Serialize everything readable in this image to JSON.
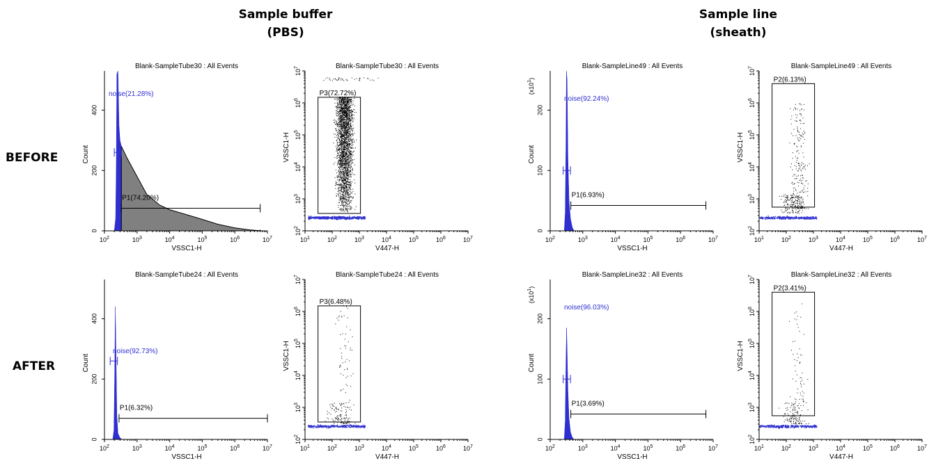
{
  "headers": {
    "left": {
      "line1": "Sample buffer",
      "line2": "(PBS)"
    },
    "right": {
      "line1": "Sample line",
      "line2": "(sheath)"
    }
  },
  "row_labels": {
    "before": "BEFORE",
    "after": "AFTER"
  },
  "colors": {
    "histogram_fill_gray": "#808080",
    "noise_blue": "#2f2fd0",
    "dots": "#000000",
    "gate_line": "#000000"
  },
  "chart_data": [
    {
      "id": "hist-tube30",
      "type": "area",
      "title": "Blank-SampleTube30 : All Events",
      "xlabel": "VSSC1-H",
      "ylabel": "Count",
      "x_scale": "log",
      "xlim": [
        100,
        10000000
      ],
      "ylim": [
        0,
        530
      ],
      "y_ticks": [
        "0",
        "200",
        "400"
      ],
      "y_multiplier": "",
      "x_ticks": [
        "10^2",
        "10^3",
        "10^4",
        "10^5",
        "10^6",
        "10^7"
      ],
      "noise_gate": {
        "label": "noise(21.28%)",
        "x": [
          200,
          330
        ],
        "y": 260
      },
      "p_gate": {
        "label": "P1(74.20%)",
        "x": [
          330,
          6000000
        ],
        "y": 75
      },
      "series": [
        {
          "fill": "blue",
          "points": [
            [
              200,
              0
            ],
            [
              220,
              40
            ],
            [
              230,
              200
            ],
            [
              240,
              520
            ],
            [
              260,
              560
            ],
            [
              280,
              350
            ],
            [
              300,
              300
            ],
            [
              330,
              280
            ]
          ]
        },
        {
          "fill": "gray",
          "points": [
            [
              330,
              280
            ],
            [
              500,
              240
            ],
            [
              1000,
              180
            ],
            [
              2000,
              120
            ],
            [
              5000,
              85
            ],
            [
              10000,
              70
            ],
            [
              30000,
              55
            ],
            [
              100000,
              38
            ],
            [
              300000,
              22
            ],
            [
              1000000,
              10
            ],
            [
              3000000,
              3
            ],
            [
              5500000,
              1
            ],
            [
              6000000,
              2
            ],
            [
              6200000,
              0
            ]
          ]
        }
      ]
    },
    {
      "id": "dot-tube30",
      "type": "scatter",
      "title": "Blank-SampleTube30 : All Events",
      "xlabel": "V447-H",
      "ylabel": "VSSC1-H",
      "x_scale": "log",
      "y_scale": "log",
      "xlim": [
        10,
        10000000
      ],
      "ylim": [
        100,
        10000000
      ],
      "x_ticks": [
        "10^1",
        "10^2",
        "10^3",
        "10^4",
        "10^5",
        "10^6",
        "10^7"
      ],
      "y_ticks": [
        "10^2",
        "10^3",
        "10^4",
        "10^5",
        "10^6",
        "10^7"
      ],
      "gate": {
        "label": "P3(72.72%)",
        "x": [
          30,
          1100
        ],
        "y": [
          350,
          1500000
        ]
      },
      "density": "dense"
    },
    {
      "id": "hist-line49",
      "type": "area",
      "title": "Blank-SampleLine49 : All Events",
      "xlabel": "VSSC1-H",
      "ylabel": "Count",
      "x_scale": "log",
      "xlim": [
        100,
        10000000
      ],
      "ylim": [
        0,
        265
      ],
      "y_ticks": [
        "0",
        "100",
        "200"
      ],
      "y_multiplier": "(x10^1)",
      "x_ticks": [
        "10^2",
        "10^3",
        "10^4",
        "10^5",
        "10^6",
        "10^7"
      ],
      "noise_gate": {
        "label": "noise(92.24%)",
        "x": [
          250,
          420
        ],
        "y": 100
      },
      "p_gate": {
        "label": "P1(6.93%)",
        "x": [
          430,
          6000000
        ],
        "y": 42
      },
      "series": [
        {
          "fill": "blue",
          "points": [
            [
              270,
              0
            ],
            [
              290,
              30
            ],
            [
              305,
              150
            ],
            [
              315,
              280
            ],
            [
              330,
              250
            ],
            [
              350,
              120
            ],
            [
              380,
              50
            ],
            [
              420,
              20
            ],
            [
              480,
              5
            ],
            [
              550,
              0
            ]
          ]
        }
      ]
    },
    {
      "id": "dot-line49",
      "type": "scatter",
      "title": "Blank-SampleLine49 : All Events",
      "xlabel": "V447-H",
      "ylabel": "VSSC1-H",
      "x_scale": "log",
      "y_scale": "log",
      "xlim": [
        10,
        10000000
      ],
      "ylim": [
        100,
        10000000
      ],
      "x_ticks": [
        "10^1",
        "10^2",
        "10^3",
        "10^4",
        "10^5",
        "10^6",
        "10^7"
      ],
      "y_ticks": [
        "10^2",
        "10^3",
        "10^4",
        "10^5",
        "10^6",
        "10^7"
      ],
      "gate": {
        "label": "P2(6.13%)",
        "x": [
          30,
          1100
        ],
        "y": [
          550,
          4000000
        ]
      },
      "density": "medium"
    },
    {
      "id": "hist-tube24",
      "type": "area",
      "title": "Blank-SampleTube24 : All Events",
      "xlabel": "VSSC1-H",
      "ylabel": "Count",
      "x_scale": "log",
      "xlim": [
        100,
        10000000
      ],
      "ylim": [
        0,
        530
      ],
      "y_ticks": [
        "0",
        "200",
        "400"
      ],
      "y_multiplier": "",
      "x_ticks": [
        "10^2",
        "10^3",
        "10^4",
        "10^5",
        "10^6",
        "10^7"
      ],
      "noise_gate": {
        "label": "noise(92.73%)",
        "x": [
          150,
          250
        ],
        "y": 260
      },
      "p_gate": {
        "label": "P1(6.32%)",
        "x": [
          280,
          10000000
        ],
        "y": 70
      },
      "series": [
        {
          "fill": "blue",
          "points": [
            [
              180,
              0
            ],
            [
              195,
              30
            ],
            [
              205,
              200
            ],
            [
              215,
              440
            ],
            [
              225,
              300
            ],
            [
              240,
              80
            ],
            [
              260,
              20
            ],
            [
              300,
              5
            ],
            [
              350,
              0
            ]
          ]
        }
      ]
    },
    {
      "id": "dot-tube24",
      "type": "scatter",
      "title": "Blank-SampleTube24 : All Events",
      "xlabel": "V447-H",
      "ylabel": "VSSC1-H",
      "x_scale": "log",
      "y_scale": "log",
      "xlim": [
        10,
        10000000
      ],
      "ylim": [
        100,
        10000000
      ],
      "x_ticks": [
        "10^1",
        "10^2",
        "10^3",
        "10^4",
        "10^5",
        "10^6",
        "10^7"
      ],
      "y_ticks": [
        "10^2",
        "10^3",
        "10^4",
        "10^5",
        "10^6",
        "10^7"
      ],
      "gate": {
        "label": "P3(6.48%)",
        "x": [
          30,
          1100
        ],
        "y": [
          350,
          1500000
        ]
      },
      "density": "sparse"
    },
    {
      "id": "hist-line32",
      "type": "area",
      "title": "Blank-SampleLine32 : All Events",
      "xlabel": "VSSC1-H",
      "ylabel": "Count",
      "x_scale": "log",
      "xlim": [
        100,
        10000000
      ],
      "ylim": [
        0,
        265
      ],
      "y_ticks": [
        "0",
        "100",
        "200"
      ],
      "y_multiplier": "(x10^1)",
      "x_ticks": [
        "10^2",
        "10^3",
        "10^4",
        "10^5",
        "10^6",
        "10^7"
      ],
      "noise_gate": {
        "label": "noise(96.03%)",
        "x": [
          250,
          420
        ],
        "y": 100
      },
      "p_gate": {
        "label": "P1(3.69%)",
        "x": [
          430,
          6000000
        ],
        "y": 42
      },
      "series": [
        {
          "fill": "blue",
          "points": [
            [
              270,
              0
            ],
            [
              290,
              30
            ],
            [
              305,
              130
            ],
            [
              318,
              185
            ],
            [
              330,
              150
            ],
            [
              350,
              80
            ],
            [
              380,
              35
            ],
            [
              420,
              12
            ],
            [
              480,
              3
            ],
            [
              550,
              0
            ]
          ]
        }
      ]
    },
    {
      "id": "dot-line32",
      "type": "scatter",
      "title": "Blank-SampleLine32 : All Events",
      "xlabel": "V447-H",
      "ylabel": "VSSC1-H",
      "x_scale": "log",
      "y_scale": "log",
      "xlim": [
        10,
        10000000
      ],
      "ylim": [
        100,
        10000000
      ],
      "x_ticks": [
        "10^1",
        "10^2",
        "10^3",
        "10^4",
        "10^5",
        "10^6",
        "10^7"
      ],
      "y_ticks": [
        "10^2",
        "10^3",
        "10^4",
        "10^5",
        "10^6",
        "10^7"
      ],
      "gate": {
        "label": "P2(3.41%)",
        "x": [
          30,
          1100
        ],
        "y": [
          550,
          4000000
        ]
      },
      "density": "sparse-line"
    }
  ]
}
